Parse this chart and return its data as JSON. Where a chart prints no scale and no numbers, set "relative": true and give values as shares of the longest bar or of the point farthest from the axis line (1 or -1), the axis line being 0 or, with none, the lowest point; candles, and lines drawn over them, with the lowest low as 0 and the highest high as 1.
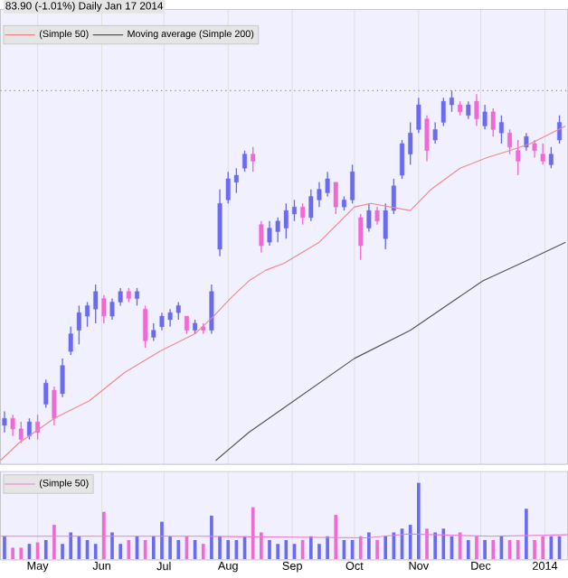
{
  "chart_data": [
    {
      "type": "candlestick",
      "title": "83.90 (-1.01%)   Daily  Jan 17 2014",
      "relative": true,
      "legend": "top left",
      "grid": "x",
      "tick_labels": false,
      "xlim": [
        "2013-04-13",
        "2014-01-12"
      ],
      "xticks": [
        {
          "value": "2013-05-01",
          "label": null
        },
        {
          "value": "2013-06-01",
          "label": null
        },
        {
          "value": "2013-07-01",
          "label": null
        },
        {
          "value": "2013-08-01",
          "label": null
        },
        {
          "value": "2013-09-01",
          "label": null
        },
        {
          "value": "2013-10-01",
          "label": null
        },
        {
          "value": "2013-11-01",
          "label": null
        },
        {
          "value": "2013-12-01",
          "label": null
        },
        {
          "value": "2014-01-01",
          "label": null
        }
      ],
      "x": [
        "2013-04-15",
        "2013-04-19",
        "2013-04-23",
        "2013-04-27",
        "2013-05-01",
        "2013-05-05",
        "2013-05-09",
        "2013-05-13",
        "2013-05-17",
        "2013-05-21",
        "2013-05-25",
        "2013-05-29",
        "2013-06-02",
        "2013-06-06",
        "2013-06-10",
        "2013-06-14",
        "2013-06-18",
        "2013-06-22",
        "2013-06-26",
        "2013-06-30",
        "2013-07-04",
        "2013-07-08",
        "2013-07-12",
        "2013-07-16",
        "2013-07-20",
        "2013-07-24",
        "2013-07-28",
        "2013-08-01",
        "2013-08-05",
        "2013-08-09",
        "2013-08-13",
        "2013-08-17",
        "2013-08-21",
        "2013-08-25",
        "2013-08-29",
        "2013-09-02",
        "2013-09-06",
        "2013-09-10",
        "2013-09-14",
        "2013-09-18",
        "2013-09-22",
        "2013-09-26",
        "2013-09-30",
        "2013-10-04",
        "2013-10-08",
        "2013-10-12",
        "2013-10-16",
        "2013-10-20",
        "2013-10-24",
        "2013-10-28",
        "2013-11-01",
        "2013-11-05",
        "2013-11-09",
        "2013-11-13",
        "2013-11-17",
        "2013-11-21",
        "2013-11-25",
        "2013-11-29",
        "2013-12-03",
        "2013-12-07",
        "2013-12-11",
        "2013-12-15",
        "2013-12-19",
        "2013-12-23",
        "2013-12-27",
        "2013-12-31",
        "2014-01-04",
        "2014-01-08"
      ],
      "ohlc": [
        [
          0.05,
          0.09,
          0.03,
          0.07
        ],
        [
          0.07,
          0.08,
          0.02,
          0.04
        ],
        [
          0.04,
          0.06,
          0,
          0.01
        ],
        [
          0.02,
          0.07,
          0.01,
          0.06
        ],
        [
          0.06,
          0.08,
          0.01,
          0.03
        ],
        [
          0.11,
          0.18,
          0.1,
          0.17
        ],
        [
          0.15,
          0.16,
          0.05,
          0.07
        ],
        [
          0.14,
          0.24,
          0.13,
          0.22
        ],
        [
          0.26,
          0.33,
          0.25,
          0.31
        ],
        [
          0.32,
          0.39,
          0.28,
          0.37
        ],
        [
          0.36,
          0.4,
          0.33,
          0.39
        ],
        [
          0.38,
          0.45,
          0.34,
          0.43
        ],
        [
          0.41,
          0.42,
          0.34,
          0.36
        ],
        [
          0.36,
          0.41,
          0.35,
          0.4
        ],
        [
          0.4,
          0.44,
          0.39,
          0.43
        ],
        [
          0.43,
          0.44,
          0.4,
          0.41
        ],
        [
          0.41,
          0.44,
          0.39,
          0.43
        ],
        [
          0.38,
          0.39,
          0.27,
          0.29
        ],
        [
          0.3,
          0.34,
          0.29,
          0.32
        ],
        [
          0.33,
          0.37,
          0.32,
          0.36
        ],
        [
          0.35,
          0.38,
          0.33,
          0.37
        ],
        [
          0.37,
          0.4,
          0.35,
          0.39
        ],
        [
          0.36,
          0.36,
          0.31,
          0.32
        ],
        [
          0.32,
          0.35,
          0.31,
          0.34
        ],
        [
          0.33,
          0.34,
          0.31,
          0.32
        ],
        [
          0.32,
          0.45,
          0.31,
          0.43
        ],
        [
          0.55,
          0.72,
          0.53,
          0.68
        ],
        [
          0.69,
          0.77,
          0.68,
          0.75
        ],
        [
          0.74,
          0.78,
          0.71,
          0.76
        ],
        [
          0.78,
          0.83,
          0.77,
          0.82
        ],
        [
          0.82,
          0.84,
          0.77,
          0.8
        ],
        [
          0.62,
          0.63,
          0.54,
          0.56
        ],
        [
          0.57,
          0.63,
          0.56,
          0.61
        ],
        [
          0.6,
          0.64,
          0.57,
          0.63
        ],
        [
          0.61,
          0.68,
          0.58,
          0.66
        ],
        [
          0.65,
          0.69,
          0.63,
          0.67
        ],
        [
          0.67,
          0.68,
          0.62,
          0.64
        ],
        [
          0.64,
          0.72,
          0.63,
          0.7
        ],
        [
          0.69,
          0.74,
          0.67,
          0.72
        ],
        [
          0.71,
          0.77,
          0.7,
          0.75
        ],
        [
          0.74,
          0.74,
          0.65,
          0.67
        ],
        [
          0.67,
          0.7,
          0.66,
          0.69
        ],
        [
          0.69,
          0.79,
          0.68,
          0.77
        ],
        [
          0.64,
          0.65,
          0.52,
          0.56
        ],
        [
          0.61,
          0.68,
          0.6,
          0.66
        ],
        [
          0.66,
          0.67,
          0.62,
          0.63
        ],
        [
          0.58,
          0.68,
          0.55,
          0.66
        ],
        [
          0.66,
          0.75,
          0.65,
          0.73
        ],
        [
          0.76,
          0.86,
          0.75,
          0.85
        ],
        [
          0.82,
          0.91,
          0.79,
          0.88
        ],
        [
          0.89,
          0.98,
          0.88,
          0.96
        ],
        [
          0.92,
          0.93,
          0.8,
          0.83
        ],
        [
          0.86,
          0.91,
          0.85,
          0.89
        ],
        [
          0.91,
          0.98,
          0.9,
          0.97
        ],
        [
          0.96,
          1,
          0.94,
          0.98
        ],
        [
          0.96,
          0.97,
          0.93,
          0.94
        ],
        [
          0.93,
          0.97,
          0.92,
          0.96
        ],
        [
          0.97,
          0.99,
          0.9,
          0.92
        ],
        [
          0.9,
          0.96,
          0.89,
          0.94
        ],
        [
          0.94,
          0.95,
          0.87,
          0.89
        ],
        [
          0.88,
          0.93,
          0.85,
          0.91
        ],
        [
          0.88,
          0.89,
          0.82,
          0.84
        ],
        [
          0.83,
          0.86,
          0.76,
          0.8
        ],
        [
          0.84,
          0.88,
          0.83,
          0.87
        ],
        [
          0.85,
          0.86,
          0.81,
          0.83
        ],
        [
          0.82,
          0.85,
          0.79,
          0.8
        ],
        [
          0.79,
          0.84,
          0.78,
          0.82
        ],
        [
          0.86,
          0.93,
          0.85,
          0.91
        ]
      ],
      "colors": [
        "#6b6bf0",
        "#f06ad2",
        "#f06ad2",
        "#6b6bf0",
        "#f06ad2",
        "#6b6bf0",
        "#f06ad2",
        "#6b6bf0",
        "#6b6bf0",
        "#6b6bf0",
        "#6b6bf0",
        "#6b6bf0",
        "#f06ad2",
        "#6b6bf0",
        "#6b6bf0",
        "#f06ad2",
        "#6b6bf0",
        "#f06ad2",
        "#6b6bf0",
        "#6b6bf0",
        "#6b6bf0",
        "#6b6bf0",
        "#f06ad2",
        "#6b6bf0",
        "#f06ad2",
        "#6b6bf0",
        "#6b6bf0",
        "#6b6bf0",
        "#6b6bf0",
        "#6b6bf0",
        "#f06ad2",
        "#f06ad2",
        "#6b6bf0",
        "#6b6bf0",
        "#6b6bf0",
        "#6b6bf0",
        "#f06ad2",
        "#6b6bf0",
        "#6b6bf0",
        "#6b6bf0",
        "#f06ad2",
        "#6b6bf0",
        "#6b6bf0",
        "#f06ad2",
        "#6b6bf0",
        "#f06ad2",
        "#6b6bf0",
        "#6b6bf0",
        "#6b6bf0",
        "#6b6bf0",
        "#6b6bf0",
        "#f06ad2",
        "#6b6bf0",
        "#6b6bf0",
        "#6b6bf0",
        "#f06ad2",
        "#6b6bf0",
        "#f06ad2",
        "#6b6bf0",
        "#f06ad2",
        "#6b6bf0",
        "#f06ad2",
        "#f06ad2",
        "#6b6bf0",
        "#f06ad2",
        "#f06ad2",
        "#6b6bf0",
        "#6b6bf0"
      ],
      "series": [
        {
          "type": "line",
          "name": "(Simple 50)",
          "color": "#f08a8a",
          "x": [
            "2013-04-13",
            "2013-04-22",
            "2013-05-09",
            "2013-05-26",
            "2013-06-12",
            "2013-06-29",
            "2013-07-16",
            "2013-07-25",
            "2013-08-02",
            "2013-08-11",
            "2013-08-19",
            "2013-08-28",
            "2013-09-14",
            "2013-10-01",
            "2013-10-09",
            "2013-10-28",
            "2013-11-07",
            "2013-11-21",
            "2013-12-04",
            "2013-12-15",
            "2013-12-25",
            "2014-01-11"
          ],
          "values": [
            -0.05,
            0,
            0.07,
            0.12,
            0.2,
            0.26,
            0.31,
            0.36,
            0.41,
            0.46,
            0.49,
            0.51,
            0.57,
            0.67,
            0.68,
            0.66,
            0.72,
            0.78,
            0.81,
            0.83,
            0.85,
            0.9
          ]
        },
        {
          "type": "line",
          "name": "Moving average (Simple 200)",
          "color": "#555555",
          "x": [
            "2013-07-26",
            "2013-08-11",
            "2013-08-28",
            "2013-10-01",
            "2013-10-28",
            "2013-12-02",
            "2013-12-24",
            "2014-01-11"
          ],
          "values": [
            -0.05,
            0.03,
            0.1,
            0.24,
            0.32,
            0.46,
            0.52,
            0.57
          ]
        }
      ],
      "ref_lines": [
        {
          "axis": "y",
          "value": 1,
          "color": "#888888",
          "line_style": "dotted"
        }
      ]
    },
    {
      "type": "bar",
      "relative": true,
      "legend": "top left",
      "grid": "x",
      "tick_labels": "x",
      "xlim": [
        "2013-04-13",
        "2014-01-12"
      ],
      "xticks": [
        {
          "value": "2013-05-01",
          "label": "May"
        },
        {
          "value": "2013-06-01",
          "label": "Jun"
        },
        {
          "value": "2013-07-01",
          "label": "Jul"
        },
        {
          "value": "2013-08-01",
          "label": "Aug"
        },
        {
          "value": "2013-09-01",
          "label": "Sep"
        },
        {
          "value": "2013-10-01",
          "label": "Oct"
        },
        {
          "value": "2013-11-01",
          "label": "Nov"
        },
        {
          "value": "2013-12-01",
          "label": "Dec"
        },
        {
          "value": "2014-01-01",
          "label": "2014"
        }
      ],
      "x": [
        "2013-04-15",
        "2013-04-19",
        "2013-04-23",
        "2013-04-27",
        "2013-05-01",
        "2013-05-05",
        "2013-05-09",
        "2013-05-13",
        "2013-05-17",
        "2013-05-21",
        "2013-05-25",
        "2013-05-29",
        "2013-06-02",
        "2013-06-06",
        "2013-06-10",
        "2013-06-14",
        "2013-06-18",
        "2013-06-22",
        "2013-06-26",
        "2013-06-30",
        "2013-07-04",
        "2013-07-08",
        "2013-07-12",
        "2013-07-16",
        "2013-07-20",
        "2013-07-24",
        "2013-07-28",
        "2013-08-01",
        "2013-08-05",
        "2013-08-09",
        "2013-08-13",
        "2013-08-17",
        "2013-08-21",
        "2013-08-25",
        "2013-08-29",
        "2013-09-02",
        "2013-09-06",
        "2013-09-10",
        "2013-09-14",
        "2013-09-18",
        "2013-09-22",
        "2013-09-26",
        "2013-09-30",
        "2013-10-04",
        "2013-10-08",
        "2013-10-12",
        "2013-10-16",
        "2013-10-20",
        "2013-10-24",
        "2013-10-28",
        "2013-11-01",
        "2013-11-05",
        "2013-11-09",
        "2013-11-13",
        "2013-11-17",
        "2013-11-21",
        "2013-11-25",
        "2013-11-29",
        "2013-12-03",
        "2013-12-07",
        "2013-12-11",
        "2013-12-15",
        "2013-12-19",
        "2013-12-23",
        "2013-12-27",
        "2013-12-31",
        "2014-01-04",
        "2014-01-08"
      ],
      "values": [
        0.3,
        0.15,
        0.15,
        0.2,
        0.22,
        0.25,
        0.45,
        0.2,
        0.35,
        0.3,
        0.25,
        0.2,
        0.62,
        0.35,
        0.2,
        0.25,
        0.3,
        0.25,
        0.3,
        0.49,
        0.3,
        0.25,
        0.3,
        0.25,
        0.2,
        0.57,
        0.3,
        0.25,
        0.25,
        0.3,
        0.68,
        0.35,
        0.25,
        0.2,
        0.25,
        0.2,
        0.25,
        0.3,
        0.2,
        0.3,
        0.58,
        0.25,
        0.25,
        0.3,
        0.35,
        0.25,
        0.3,
        0.35,
        0.4,
        0.45,
        1,
        0.4,
        0.35,
        0.4,
        0.3,
        0.35,
        0.25,
        0.3,
        0.25,
        0.25,
        0.3,
        0.25,
        0.25,
        0.66,
        0.25,
        0.3,
        0.3,
        0.3
      ],
      "colors": [
        "#6b6bf0",
        "#f06ad2",
        "#f06ad2",
        "#6b6bf0",
        "#f06ad2",
        "#6b6bf0",
        "#f06ad2",
        "#6b6bf0",
        "#6b6bf0",
        "#6b6bf0",
        "#6b6bf0",
        "#6b6bf0",
        "#f06ad2",
        "#6b6bf0",
        "#6b6bf0",
        "#f06ad2",
        "#6b6bf0",
        "#f06ad2",
        "#6b6bf0",
        "#6b6bf0",
        "#6b6bf0",
        "#6b6bf0",
        "#f06ad2",
        "#6b6bf0",
        "#f06ad2",
        "#6b6bf0",
        "#6b6bf0",
        "#6b6bf0",
        "#6b6bf0",
        "#6b6bf0",
        "#f06ad2",
        "#f06ad2",
        "#6b6bf0",
        "#6b6bf0",
        "#6b6bf0",
        "#6b6bf0",
        "#f06ad2",
        "#6b6bf0",
        "#6b6bf0",
        "#6b6bf0",
        "#f06ad2",
        "#6b6bf0",
        "#6b6bf0",
        "#f06ad2",
        "#6b6bf0",
        "#f06ad2",
        "#6b6bf0",
        "#6b6bf0",
        "#6b6bf0",
        "#6b6bf0",
        "#6b6bf0",
        "#f06ad2",
        "#6b6bf0",
        "#6b6bf0",
        "#6b6bf0",
        "#f06ad2",
        "#6b6bf0",
        "#f06ad2",
        "#6b6bf0",
        "#f06ad2",
        "#6b6bf0",
        "#f06ad2",
        "#f06ad2",
        "#6b6bf0",
        "#f06ad2",
        "#f06ad2",
        "#6b6bf0",
        "#6b6bf0"
      ],
      "series": [
        {
          "type": "line",
          "name": "(Simple 50)",
          "color": "#f07ad6",
          "x": [
            "2013-04-13",
            "2013-07-19",
            "2013-10-07",
            "2013-10-27",
            "2013-12-06",
            "2014-01-12"
          ],
          "values": [
            0.3,
            0.3,
            0.28,
            0.33,
            0.3,
            0.32
          ]
        }
      ]
    }
  ]
}
